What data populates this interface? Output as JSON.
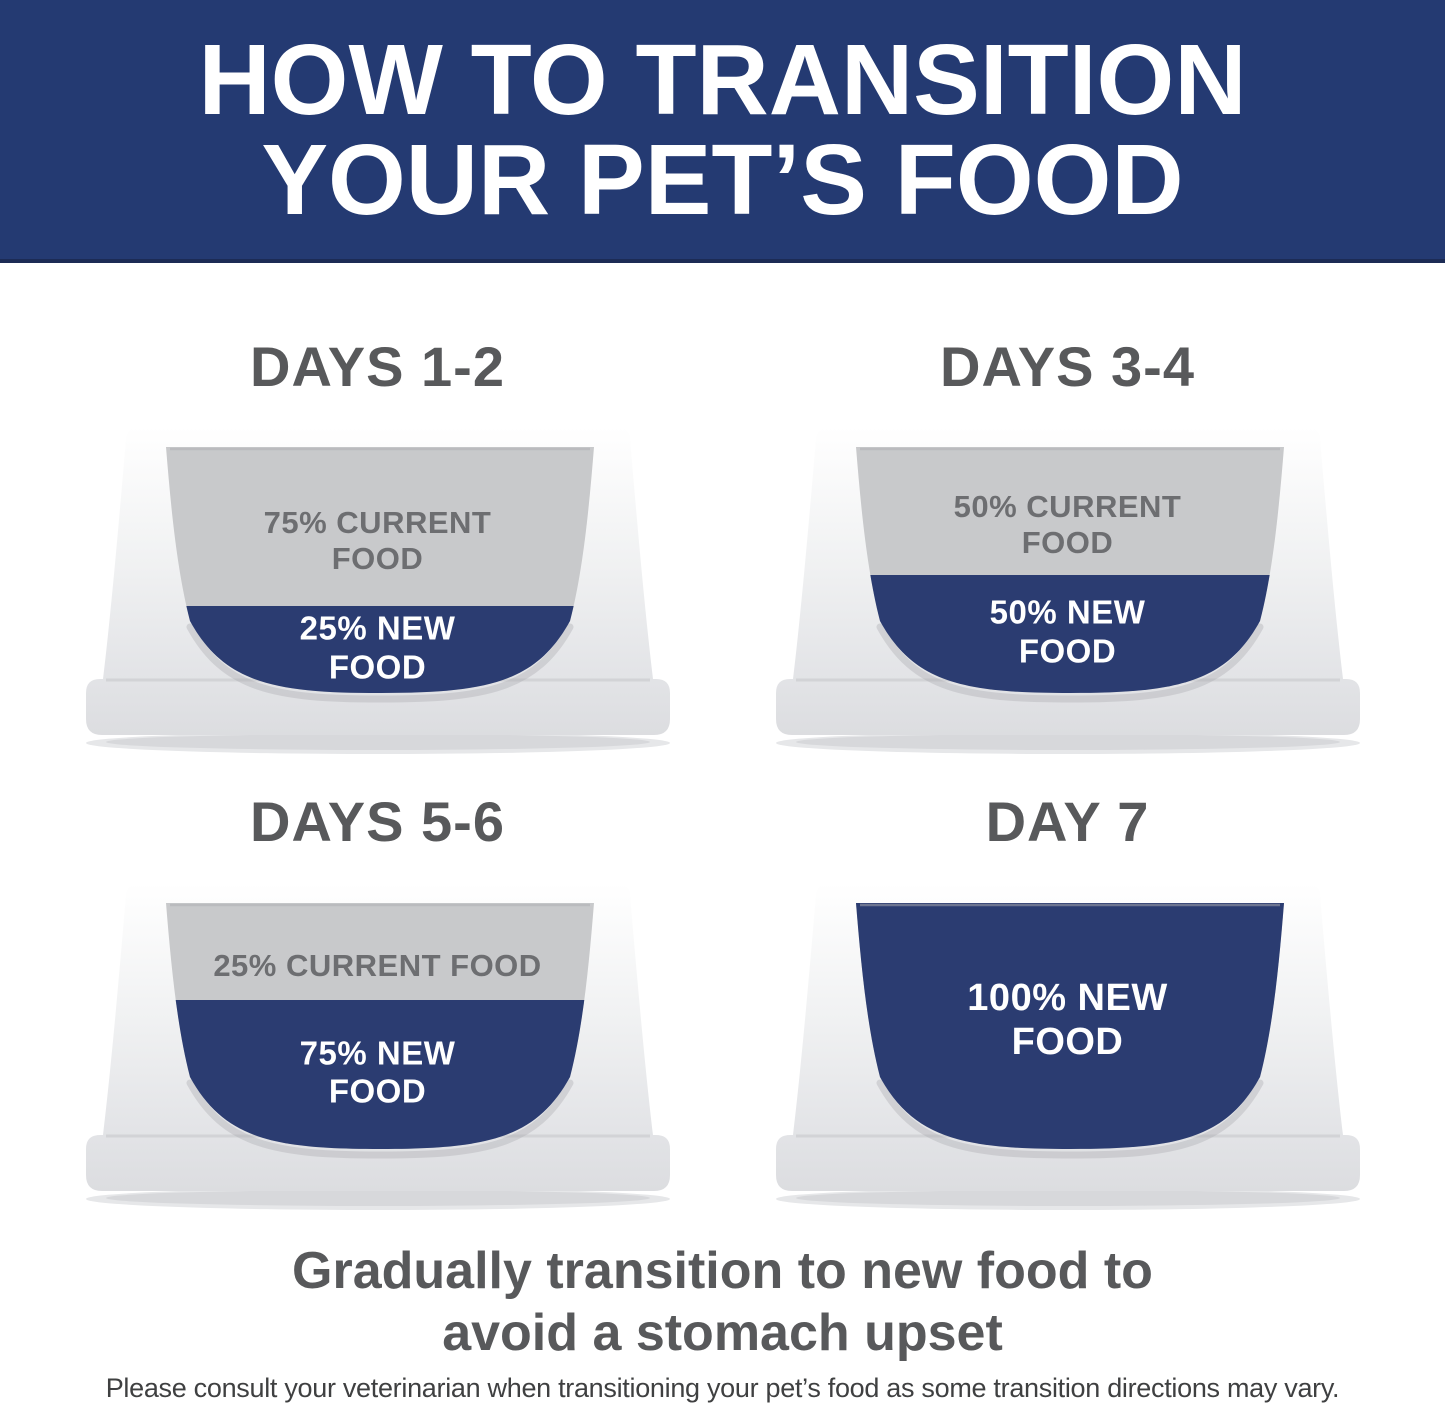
{
  "header": {
    "title_line1": "HOW TO TRANSITION",
    "title_line2": "YOUR PET’S FOOD"
  },
  "bowls": [
    {
      "heading": "DAYS 1-2",
      "current_food_pct": 75,
      "new_food_pct": 25,
      "current_label": [
        "75% CURRENT",
        "FOOD"
      ],
      "new_label": [
        "25% NEW",
        "FOOD"
      ]
    },
    {
      "heading": "DAYS 3-4",
      "current_food_pct": 50,
      "new_food_pct": 50,
      "current_label": [
        "50% CURRENT",
        "FOOD"
      ],
      "new_label": [
        "50% NEW",
        "FOOD"
      ]
    },
    {
      "heading": "DAYS 5-6",
      "current_food_pct": 25,
      "new_food_pct": 75,
      "current_label": [
        "25% CURRENT FOOD"
      ],
      "new_label": [
        "75% NEW",
        "FOOD"
      ]
    },
    {
      "heading": "DAY 7",
      "current_food_pct": 0,
      "new_food_pct": 100,
      "current_label": [],
      "new_label": [
        "100% NEW",
        "FOOD"
      ]
    }
  ],
  "footer": {
    "tagline_line1": "Gradually transition to new food to",
    "tagline_line2": "avoid a stomach upset",
    "disclaimer": "Please consult your veterinarian when transitioning your pet’s food as some transition directions may vary."
  },
  "colors": {
    "banner_navy": "#243a72",
    "bowl_navy": "#2b3c71",
    "current_food_gray": "#c8c9cb",
    "heading_gray": "#58595b",
    "current_label_gray": "#6d6e71",
    "tagline_gray": "#58595b",
    "disclaimer_gray": "#3f4041",
    "white": "#ffffff"
  }
}
